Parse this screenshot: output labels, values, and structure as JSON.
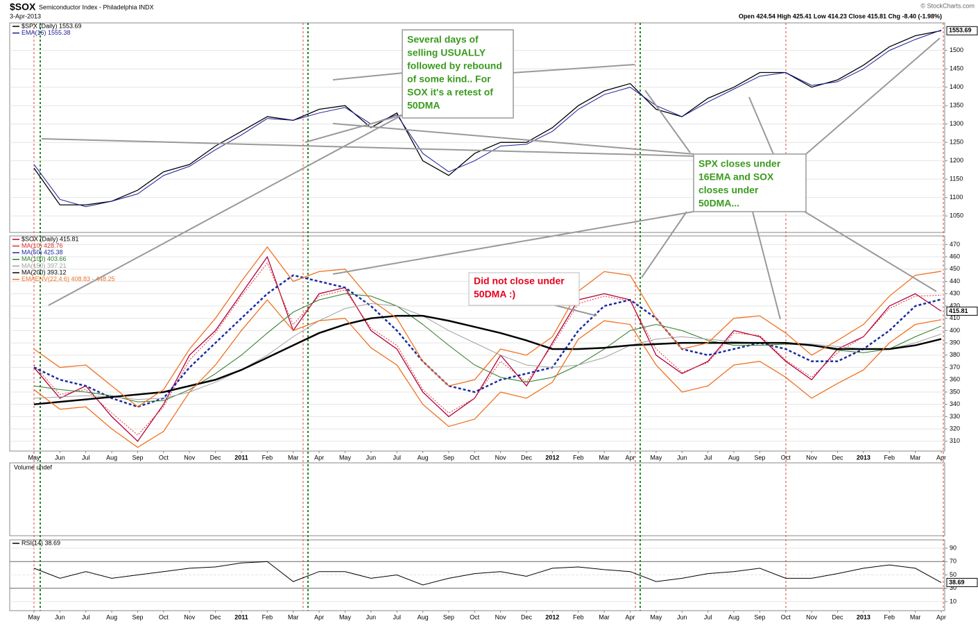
{
  "header": {
    "title": "$SOX",
    "subtitle": "Semiconductor Index - Philadelphia INDX",
    "date": "3-Apr-2013",
    "ohlc": "Open 424.54 High 425.41 Low 414.23 Close 415.81 Chg -8.40 (-1.98%)",
    "copyright": "© StockCharts.com"
  },
  "annotations": [
    {
      "color": "#3a9a1e",
      "lines": [
        "Several days of",
        "selling USUALLY",
        "followed by rebound",
        "of some kind.. For",
        "SOX it's a retest of",
        "50DMA"
      ]
    },
    {
      "color": "#3a9a1e",
      "lines": [
        "SPX closes under",
        "16EMA and SOX",
        "closes under",
        "50DMA..."
      ]
    },
    {
      "color": "#e8001c",
      "lines": [
        "Did not close under",
        "50DMA :)"
      ]
    }
  ],
  "volume_panel": {
    "label": "Volume undef"
  },
  "chart_data": [
    {
      "type": "line",
      "last_label": "1553.69",
      "categories": [
        "May",
        "Jun",
        "Jul",
        "Aug",
        "Sep",
        "Oct",
        "Nov",
        "Dec",
        "2011",
        "Feb",
        "Mar",
        "Apr",
        "May",
        "Jun",
        "Jul",
        "Aug",
        "Sep",
        "Oct",
        "Nov",
        "Dec",
        "2012",
        "Feb",
        "Mar",
        "Apr",
        "May",
        "Jun",
        "Jul",
        "Aug",
        "Sep",
        "Oct",
        "Nov",
        "Dec",
        "2013",
        "Feb",
        "Mar",
        "Apr"
      ],
      "ylim": [
        1005,
        1575
      ],
      "yticks": [
        1050,
        1100,
        1150,
        1200,
        1250,
        1300,
        1350,
        1400,
        1450,
        1500
      ],
      "grid": true,
      "series": [
        {
          "name": "$SPX (Daily) 1553.69",
          "color": "#000000",
          "width": 1.3,
          "values": [
            1180,
            1080,
            1080,
            1090,
            1120,
            1170,
            1190,
            1240,
            1280,
            1320,
            1310,
            1340,
            1350,
            1290,
            1330,
            1200,
            1160,
            1220,
            1250,
            1250,
            1290,
            1350,
            1390,
            1410,
            1340,
            1320,
            1370,
            1400,
            1440,
            1440,
            1400,
            1420,
            1460,
            1510,
            1540,
            1553.69
          ]
        },
        {
          "name": "EMA(16) 1555.38",
          "color": "#1a1a9a",
          "width": 1,
          "values": [
            1190,
            1095,
            1075,
            1090,
            1110,
            1160,
            1185,
            1230,
            1270,
            1315,
            1310,
            1330,
            1345,
            1300,
            1325,
            1220,
            1170,
            1200,
            1240,
            1245,
            1280,
            1340,
            1380,
            1400,
            1350,
            1320,
            1360,
            1395,
            1430,
            1440,
            1405,
            1415,
            1450,
            1500,
            1530,
            1555.38
          ]
        }
      ]
    },
    {
      "type": "line",
      "last_label": "415.81",
      "categories": [
        "May",
        "Jun",
        "Jul",
        "Aug",
        "Sep",
        "Oct",
        "Nov",
        "Dec",
        "2011",
        "Feb",
        "Mar",
        "Apr",
        "May",
        "Jun",
        "Jul",
        "Aug",
        "Sep",
        "Oct",
        "Nov",
        "Dec",
        "2012",
        "Feb",
        "Mar",
        "Apr",
        "May",
        "Jun",
        "Jul",
        "Aug",
        "Sep",
        "Oct",
        "Nov",
        "Dec",
        "2013",
        "Feb",
        "Mar",
        "Apr"
      ],
      "ylim": [
        302,
        477
      ],
      "yticks": [
        310,
        320,
        330,
        340,
        350,
        360,
        370,
        380,
        390,
        400,
        410,
        420,
        430,
        440,
        450,
        460,
        470
      ],
      "grid": true,
      "series": [
        {
          "name": "$SOX (Daily) 415.81",
          "color": "#b0003a",
          "width": 1.3,
          "values": [
            370,
            345,
            355,
            330,
            310,
            340,
            380,
            400,
            430,
            460,
            400,
            430,
            435,
            400,
            385,
            350,
            330,
            345,
            380,
            355,
            390,
            425,
            430,
            425,
            380,
            365,
            375,
            400,
            395,
            375,
            360,
            385,
            395,
            420,
            430,
            415.81
          ]
        },
        {
          "name": "MA(10) 428.76",
          "color": "#e03030",
          "width": 1,
          "dash": "2,2",
          "values": [
            372,
            348,
            352,
            333,
            315,
            338,
            376,
            398,
            428,
            455,
            405,
            428,
            433,
            402,
            388,
            352,
            333,
            345,
            375,
            358,
            388,
            422,
            428,
            424,
            385,
            366,
            374,
            398,
            396,
            376,
            362,
            382,
            395,
            418,
            428,
            428.76
          ]
        },
        {
          "name": "MA(50) 425.38",
          "color": "#1a2aa0",
          "width": 2.5,
          "dash": "4,3",
          "values": [
            370,
            360,
            355,
            345,
            338,
            345,
            370,
            390,
            410,
            430,
            445,
            440,
            435,
            420,
            400,
            375,
            355,
            350,
            360,
            365,
            370,
            400,
            420,
            425,
            410,
            385,
            380,
            385,
            390,
            385,
            375,
            375,
            385,
            400,
            420,
            425.38
          ]
        },
        {
          "name": "MA(100) 403.66",
          "color": "#2a7a2a",
          "width": 1,
          "values": [
            355,
            352,
            350,
            347,
            342,
            343,
            352,
            365,
            380,
            398,
            415,
            425,
            430,
            428,
            420,
            405,
            388,
            372,
            362,
            358,
            362,
            372,
            385,
            400,
            405,
            400,
            392,
            388,
            388,
            389,
            388,
            384,
            382,
            385,
            395,
            403.66
          ]
        },
        {
          "name": "MA(150) 397.21",
          "color": "#a0a0a0",
          "width": 1,
          "values": [
            345,
            346,
            347,
            346,
            344,
            345,
            350,
            358,
            368,
            380,
            395,
            408,
            418,
            422,
            420,
            412,
            400,
            390,
            380,
            372,
            370,
            372,
            378,
            388,
            393,
            395,
            393,
            391,
            390,
            390,
            389,
            387,
            385,
            385,
            390,
            397.21
          ]
        },
        {
          "name": "MA(200) 393.12",
          "color": "#000000",
          "width": 2.5,
          "values": [
            340,
            342,
            344,
            346,
            348,
            350,
            355,
            360,
            368,
            378,
            388,
            398,
            405,
            410,
            412,
            412,
            408,
            403,
            398,
            392,
            385,
            385,
            386,
            388,
            389,
            390,
            390,
            390,
            390,
            390,
            388,
            385,
            385,
            385,
            388,
            393.12
          ]
        },
        {
          "name": "EMAENV(22,4.6) 408.83 - 448.25",
          "color": "#f07020",
          "width": 1.3,
          "values": [
            385,
            370,
            372,
            355,
            338,
            352,
            385,
            410,
            440,
            468,
            440,
            448,
            450,
            425,
            410,
            375,
            355,
            360,
            385,
            380,
            395,
            432,
            448,
            445,
            410,
            385,
            390,
            410,
            412,
            398,
            380,
            392,
            405,
            428,
            445,
            448.25
          ]
        },
        {
          "color": "#f07020",
          "width": 1.3,
          "values": [
            352,
            336,
            338,
            320,
            305,
            318,
            350,
            372,
            400,
            425,
            400,
            408,
            410,
            386,
            372,
            340,
            322,
            328,
            350,
            345,
            358,
            393,
            408,
            405,
            372,
            350,
            355,
            372,
            375,
            362,
            345,
            357,
            368,
            390,
            405,
            408.83
          ]
        }
      ]
    },
    {
      "type": "line",
      "last_label": "38.69",
      "categories": [
        "May",
        "Jun",
        "Jul",
        "Aug",
        "Sep",
        "Oct",
        "Nov",
        "Dec",
        "2011",
        "Feb",
        "Mar",
        "Apr",
        "May",
        "Jun",
        "Jul",
        "Aug",
        "Sep",
        "Oct",
        "Nov",
        "Dec",
        "2012",
        "Feb",
        "Mar",
        "Apr",
        "May",
        "Jun",
        "Jul",
        "Aug",
        "Sep",
        "Oct",
        "Nov",
        "Dec",
        "2013",
        "Feb",
        "Mar",
        "Apr"
      ],
      "ylim": [
        -3.5,
        102.5
      ],
      "yticks": [
        10,
        30,
        50,
        70,
        90
      ],
      "grid": true,
      "series": [
        {
          "name": "RSI(14) 38.69",
          "color": "#000000",
          "width": 1,
          "values": [
            60,
            45,
            55,
            45,
            50,
            55,
            60,
            62,
            68,
            70,
            40,
            55,
            55,
            45,
            50,
            35,
            45,
            52,
            55,
            48,
            60,
            62,
            58,
            55,
            40,
            45,
            52,
            55,
            60,
            45,
            45,
            52,
            60,
            65,
            60,
            38.69
          ]
        }
      ]
    }
  ]
}
